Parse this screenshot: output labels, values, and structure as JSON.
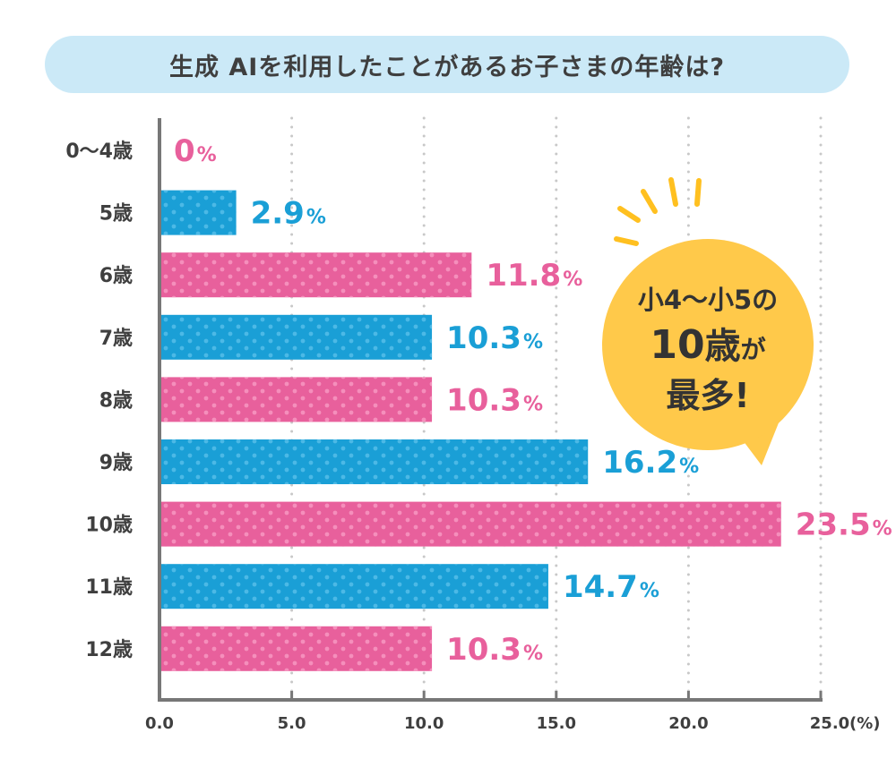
{
  "title": "生成 AIを利用したことがあるお子さまの年齢は?",
  "colors": {
    "pink": "#e8609c",
    "blue": "#1a9fd6",
    "bubble": "#ffc94a",
    "accent": "#ffc020",
    "axis": "#777777",
    "text": "#3f3f3f"
  },
  "chart_data": {
    "type": "bar",
    "orientation": "horizontal",
    "categories": [
      "0〜4歳",
      "5歳",
      "6歳",
      "7歳",
      "8歳",
      "9歳",
      "10歳",
      "11歳",
      "12歳"
    ],
    "values": [
      0,
      2.9,
      11.8,
      10.3,
      10.3,
      16.2,
      23.5,
      14.7,
      10.3
    ],
    "value_labels": [
      "0",
      "2.9",
      "11.8",
      "10.3",
      "10.3",
      "16.2",
      "23.5",
      "14.7",
      "10.3"
    ],
    "value_unit": "%",
    "bar_colors": [
      "pink",
      "blue",
      "pink",
      "blue",
      "pink",
      "blue",
      "pink",
      "blue",
      "pink"
    ],
    "xlim": [
      0,
      25
    ],
    "x_ticks": [
      "0.0",
      "5.0",
      "10.0",
      "15.0",
      "20.0",
      "25.0"
    ],
    "x_unit_label": "(%)",
    "grid": "dotted vertical",
    "annotation": {
      "line1": "小4〜小5の",
      "line2_num": "10",
      "line2_unit": "歳",
      "line2_suffix": "が",
      "line3": "最多!"
    }
  }
}
